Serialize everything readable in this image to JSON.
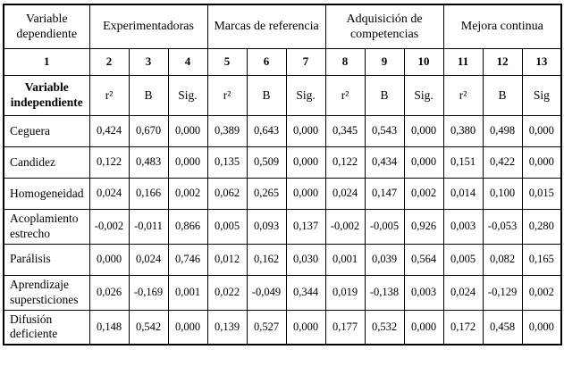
{
  "colors": {
    "background": "#ffffff",
    "border": "#000000",
    "text": "#000000"
  },
  "table": {
    "corner_label": "Variable dependiente",
    "corner_number": "1",
    "independent_label": "Variable independiente",
    "groups": [
      {
        "label": "Experimentadoras",
        "cols": [
          "2",
          "3",
          "4"
        ],
        "stats": [
          "r²",
          "B",
          "Sig."
        ]
      },
      {
        "label": "Marcas de referencia",
        "cols": [
          "5",
          "6",
          "7"
        ],
        "stats": [
          "r²",
          "B",
          "Sig."
        ]
      },
      {
        "label": "Adquisición de competencias",
        "cols": [
          "8",
          "9",
          "10"
        ],
        "stats": [
          "r²",
          "B",
          "Sig."
        ]
      },
      {
        "label": "Mejora continua",
        "cols": [
          "11",
          "12",
          "13"
        ],
        "stats": [
          "r²",
          "B",
          "Sig"
        ]
      }
    ],
    "rows": [
      {
        "label": "Ceguera",
        "values": [
          "0,424",
          "0,670",
          "0,000",
          "0,389",
          "0,643",
          "0,000",
          "0,345",
          "0,543",
          "0,000",
          "0,380",
          "0,498",
          "0,000"
        ]
      },
      {
        "label": "Candidez",
        "values": [
          "0,122",
          "0,483",
          "0,000",
          "0,135",
          "0,509",
          "0,000",
          "0,122",
          "0,434",
          "0,000",
          "0,151",
          "0,422",
          "0,000"
        ]
      },
      {
        "label": "Homogeneidad",
        "values": [
          "0,024",
          "0,166",
          "0,002",
          "0,062",
          "0,265",
          "0,000",
          "0,024",
          "0,147",
          "0,002",
          "0,014",
          "0,100",
          "0,015"
        ]
      },
      {
        "label": "Acoplamiento estrecho",
        "values": [
          "-0,002",
          "-0,011",
          "0,866",
          "0,005",
          "0,093",
          "0,137",
          "-0,002",
          "-0,005",
          "0,926",
          "0,003",
          "-0,053",
          "0,280"
        ]
      },
      {
        "label": "Parálisis",
        "values": [
          "0,000",
          "0,024",
          "0,746",
          "0,012",
          "0,162",
          "0,030",
          "0,001",
          "0,039",
          "0,564",
          "0,005",
          "0,082",
          "0,165"
        ]
      },
      {
        "label": "Aprendizaje supersticiones",
        "values": [
          "0,026",
          "-0,169",
          "0,001",
          "0,022",
          "-0,049",
          "0,344",
          "0,019",
          "-0,138",
          "0,003",
          "0,024",
          "-0,129",
          "0,002"
        ]
      },
      {
        "label": "Difusión deficiente",
        "values": [
          "0,148",
          "0,542",
          "0,000",
          "0,139",
          "0,527",
          "0,000",
          "0,177",
          "0,532",
          "0,000",
          "0,172",
          "0,458",
          "0,000"
        ]
      }
    ]
  }
}
